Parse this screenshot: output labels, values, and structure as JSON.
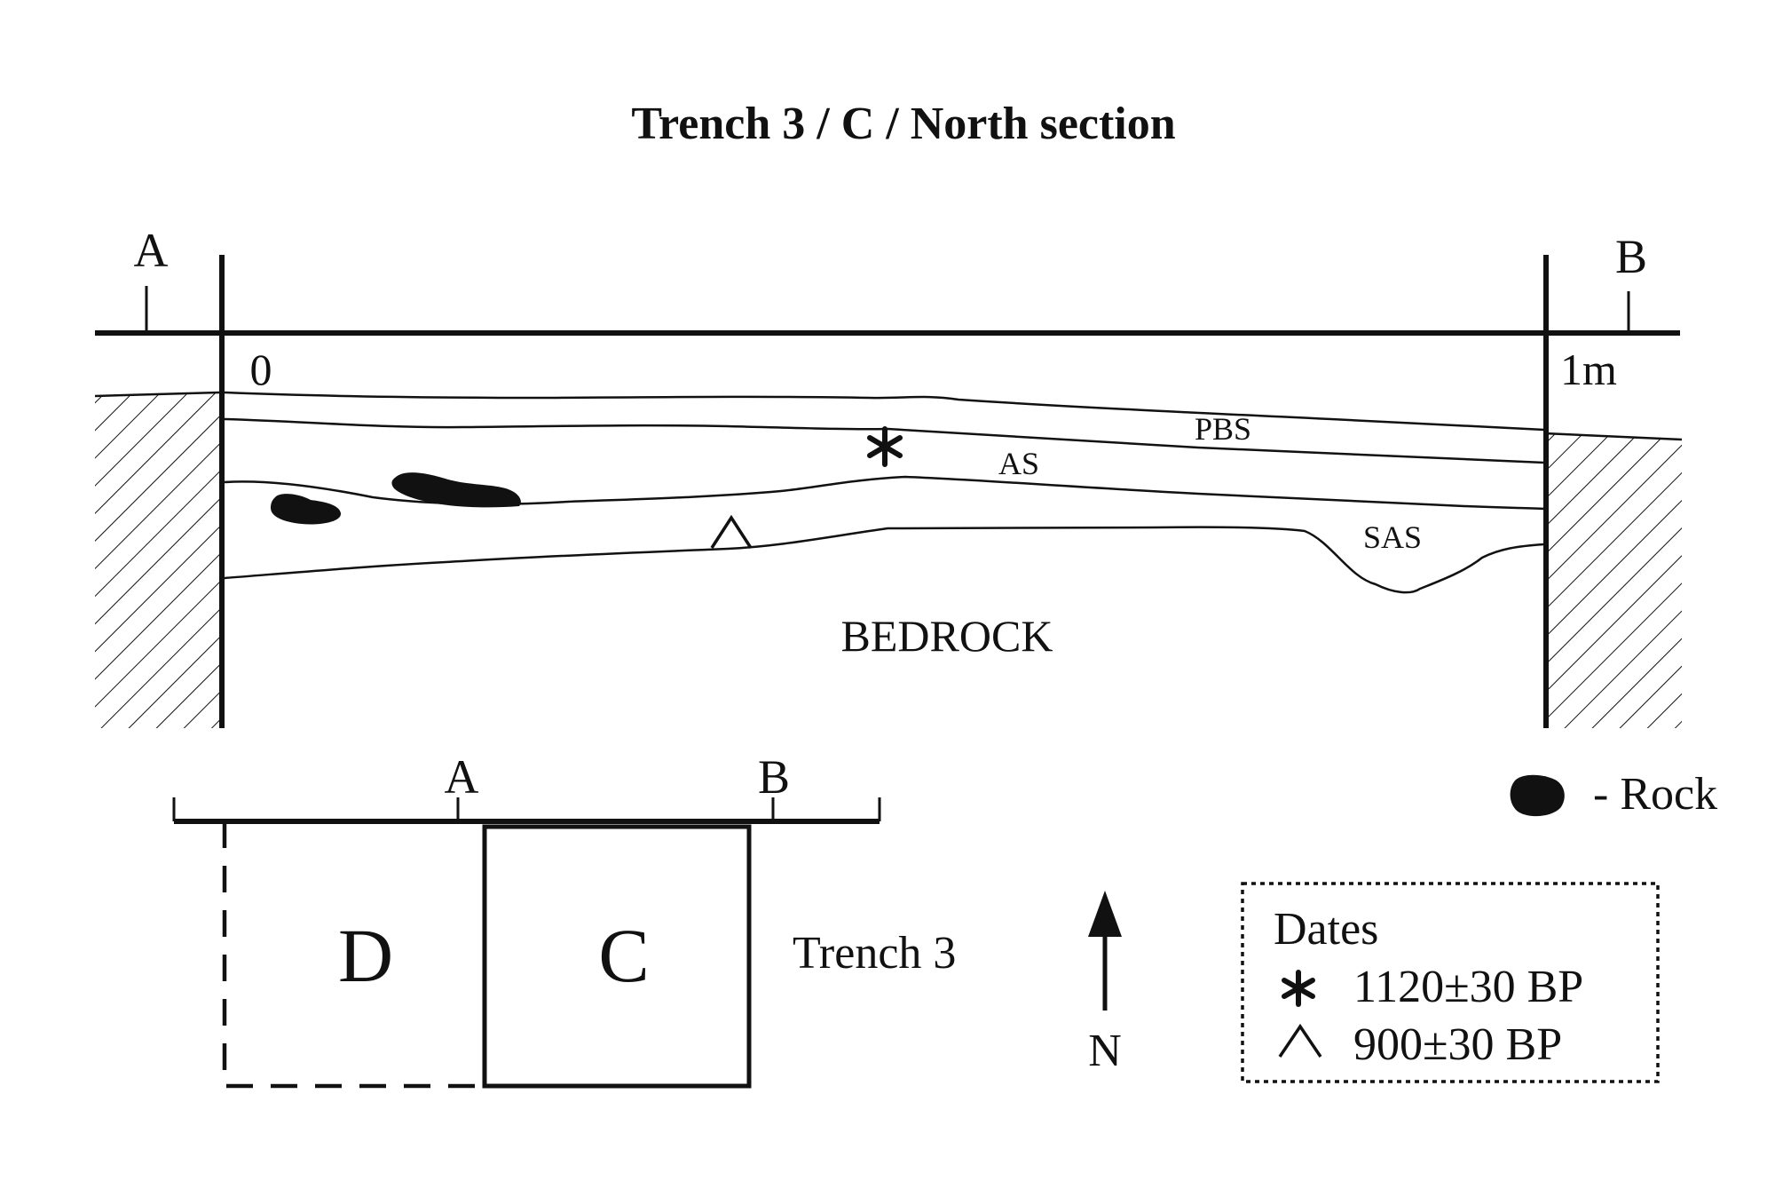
{
  "title": "Trench 3 / C / North section",
  "section": {
    "point_a": "A",
    "point_b": "B",
    "scale_start": "0",
    "scale_end": "1m",
    "layers": {
      "pbs": "PBS",
      "as": "AS",
      "sas": "SAS",
      "bedrock": "BEDROCK"
    }
  },
  "plan": {
    "point_a": "A",
    "point_b": "B",
    "square_d": "D",
    "square_c": "C",
    "trench_label": "Trench 3",
    "north": "N"
  },
  "legend": {
    "rock_label": "- Rock",
    "dates_title": "Dates",
    "dates": [
      {
        "symbol": "*",
        "value": "1120±30 BP"
      },
      {
        "symbol": "^",
        "value": "900±30 BP"
      }
    ]
  },
  "colors": {
    "ink": "#111111",
    "background": "#ffffff"
  }
}
